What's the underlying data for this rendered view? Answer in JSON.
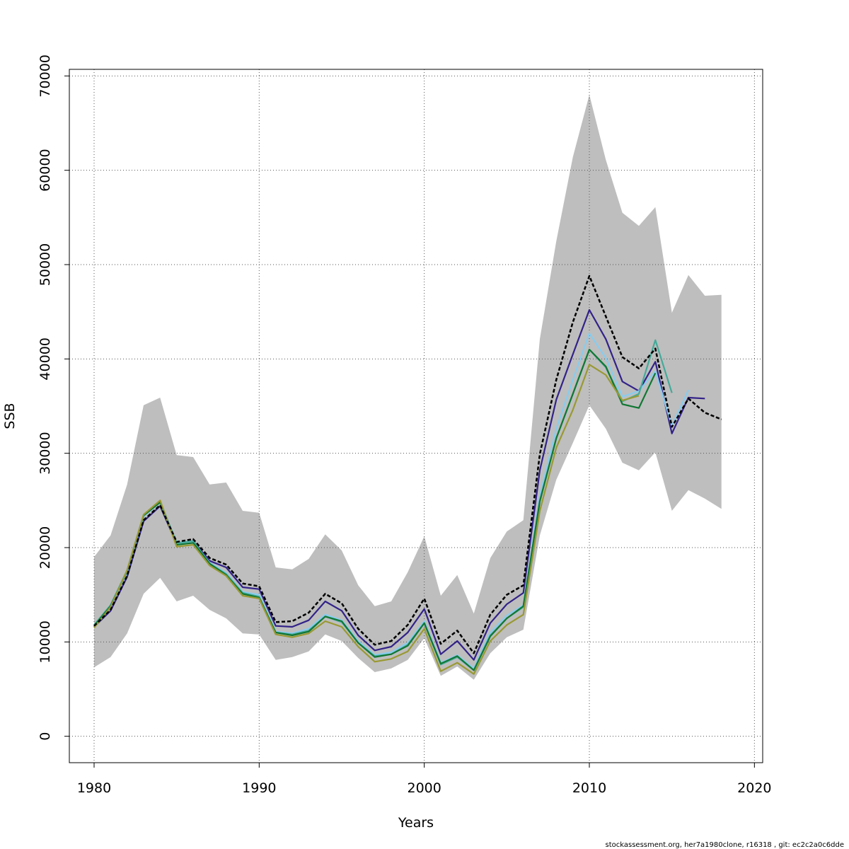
{
  "chart_data": {
    "type": "line",
    "title": "",
    "xlabel": "Years",
    "ylabel": "SSB",
    "xlim": [
      1978.5,
      2020.5
    ],
    "ylim": [
      -2800,
      70700
    ],
    "x_ticks": [
      1980,
      1990,
      2000,
      2010,
      2020
    ],
    "x_tick_labels": [
      "1980",
      "1990",
      "2000",
      "2010",
      "2020"
    ],
    "y_ticks": [
      0,
      10000,
      20000,
      30000,
      40000,
      50000,
      60000,
      70000
    ],
    "y_tick_labels": [
      "0",
      "10000",
      "20000",
      "30000",
      "40000",
      "50000",
      "60000",
      "70000"
    ],
    "grid": true,
    "band": {
      "x": [
        1980,
        1981,
        1982,
        1983,
        1984,
        1985,
        1986,
        1987,
        1988,
        1989,
        1990,
        1991,
        1992,
        1993,
        1994,
        1995,
        1996,
        1997,
        1998,
        1999,
        2000,
        2001,
        2002,
        2003,
        2004,
        2005,
        2006,
        2007,
        2008,
        2009,
        2010,
        2011,
        2012,
        2013,
        2014,
        2015,
        2016,
        2017,
        2018
      ],
      "upper": [
        19000,
        21300,
        26700,
        35100,
        35900,
        29800,
        29600,
        26700,
        26900,
        23900,
        23700,
        17900,
        17700,
        18800,
        21400,
        19700,
        16000,
        13800,
        14300,
        17400,
        21200,
        14900,
        17100,
        13000,
        18900,
        21700,
        22900,
        42100,
        52500,
        61400,
        68000,
        61100,
        55500,
        54100,
        56100,
        44900,
        48900,
        46700,
        46800
      ],
      "lower": [
        7300,
        8400,
        10900,
        15100,
        16800,
        14300,
        14900,
        13400,
        12500,
        10900,
        10800,
        8100,
        8400,
        9000,
        10800,
        10100,
        8300,
        6800,
        7200,
        8100,
        10400,
        6400,
        7400,
        6000,
        8800,
        10500,
        11300,
        21300,
        27200,
        31100,
        35100,
        32600,
        29000,
        28200,
        30100,
        23900,
        26100,
        25200,
        24100
      ],
      "color": "#bebebe"
    },
    "series": [
      {
        "color": "#000000",
        "dashed": true,
        "x": [
          1980,
          1981,
          1982,
          1983,
          1984,
          1985,
          1986,
          1987,
          1988,
          1989,
          1990,
          1991,
          1992,
          1993,
          1994,
          1995,
          1996,
          1997,
          1998,
          1999,
          2000,
          2001,
          2002,
          2003,
          2004,
          2005,
          2006,
          2007,
          2008,
          2009,
          2010,
          2011,
          2012,
          2013,
          2014,
          2015,
          2016,
          2017,
          2018
        ],
        "y": [
          11700,
          13400,
          17000,
          22900,
          24500,
          20600,
          20900,
          18900,
          18200,
          16200,
          15900,
          12100,
          12200,
          13100,
          15100,
          14100,
          11400,
          9700,
          10100,
          11800,
          14600,
          9800,
          11200,
          8800,
          12900,
          15000,
          16000,
          29900,
          37800,
          43900,
          48800,
          44500,
          40200,
          39000,
          41100,
          32800,
          35800,
          34300,
          33600
        ]
      },
      {
        "color": "#332288",
        "dashed": false,
        "x": [
          1980,
          1981,
          1982,
          1983,
          1984,
          1985,
          1986,
          1987,
          1988,
          1989,
          1990,
          1991,
          1992,
          1993,
          1994,
          1995,
          1996,
          1997,
          1998,
          1999,
          2000,
          2001,
          2002,
          2003,
          2004,
          2005,
          2006,
          2007,
          2008,
          2009,
          2010,
          2011,
          2012,
          2013,
          2014,
          2015,
          2016,
          2017
        ],
        "y": [
          11600,
          13300,
          16900,
          22800,
          24400,
          20400,
          20700,
          18600,
          17900,
          15800,
          15600,
          11700,
          11600,
          12300,
          14300,
          13300,
          10700,
          9100,
          9500,
          11000,
          13500,
          8700,
          10100,
          8100,
          12000,
          14000,
          15200,
          28200,
          35700,
          40500,
          45200,
          42100,
          37600,
          36600,
          39700,
          32100,
          35900,
          35800
        ]
      },
      {
        "color": "#88ccee",
        "dashed": false,
        "x": [
          1980,
          1981,
          1982,
          1983,
          1984,
          1985,
          1986,
          1987,
          1988,
          1989,
          1990,
          1991,
          1992,
          1993,
          1994,
          1995,
          1996,
          1997,
          1998,
          1999,
          2000,
          2001,
          2002,
          2003,
          2004,
          2005,
          2006,
          2007,
          2008,
          2009,
          2010,
          2011,
          2012,
          2013,
          2014,
          2015,
          2016
        ],
        "y": [
          11700,
          13700,
          17400,
          23300,
          24800,
          20400,
          20600,
          18400,
          17300,
          15300,
          15000,
          11100,
          10900,
          11400,
          12900,
          12300,
          10100,
          8600,
          8900,
          9900,
          12200,
          7800,
          8600,
          7200,
          11000,
          12800,
          13900,
          25500,
          32600,
          37800,
          42700,
          40100,
          36000,
          36600,
          38700,
          32900,
          36700
        ]
      },
      {
        "color": "#44aa99",
        "dashed": false,
        "x": [
          1980,
          1981,
          1982,
          1983,
          1984,
          1985,
          1986,
          1987,
          1988,
          1989,
          1990,
          1991,
          1992,
          1993,
          1994,
          1995,
          1996,
          1997,
          1998,
          1999,
          2000,
          2001,
          2002,
          2003,
          2004,
          2005,
          2006,
          2007,
          2008,
          2009,
          2010,
          2011,
          2012,
          2013,
          2014,
          2015
        ],
        "y": [
          11800,
          13900,
          17600,
          23500,
          24900,
          20500,
          20700,
          18300,
          17200,
          15200,
          14800,
          11000,
          10800,
          11200,
          12700,
          12100,
          9900,
          8500,
          8700,
          9700,
          12000,
          7600,
          8400,
          7000,
          10700,
          12500,
          13700,
          25000,
          31600,
          36300,
          41000,
          39100,
          35500,
          36300,
          42000,
          36400
        ]
      },
      {
        "color": "#117733",
        "dashed": false,
        "x": [
          1980,
          1981,
          1982,
          1983,
          1984,
          1985,
          1986,
          1987,
          1988,
          1989,
          1990,
          1991,
          1992,
          1993,
          1994,
          1995,
          1996,
          1997,
          1998,
          1999,
          2000,
          2001,
          2002,
          2003,
          2004,
          2005,
          2006,
          2007,
          2008,
          2009,
          2010,
          2011,
          2012,
          2013,
          2014
        ],
        "y": [
          11700,
          13800,
          17500,
          23400,
          24800,
          20300,
          20500,
          18300,
          17100,
          15100,
          14700,
          11000,
          10700,
          11100,
          12700,
          12200,
          9900,
          8400,
          8700,
          9600,
          12000,
          7700,
          8500,
          7000,
          10600,
          12500,
          13800,
          24900,
          31600,
          36300,
          41000,
          39200,
          35200,
          34800,
          38500
        ]
      },
      {
        "color": "#999933",
        "dashed": false,
        "x": [
          1980,
          1981,
          1982,
          1983,
          1984,
          1985,
          1986,
          1987,
          1988,
          1989,
          1990,
          1991,
          1992,
          1993,
          1994,
          1995,
          1996,
          1997,
          1998,
          1999,
          2000,
          2001,
          2002,
          2003,
          2004,
          2005,
          2006,
          2007,
          2008,
          2009,
          2010,
          2011,
          2012,
          2013
        ],
        "y": [
          11500,
          13700,
          17600,
          23500,
          25000,
          20100,
          20300,
          18100,
          17000,
          14900,
          14600,
          10800,
          10500,
          10900,
          12200,
          11600,
          9500,
          7900,
          8200,
          9000,
          11400,
          6900,
          7800,
          6600,
          10100,
          11800,
          12900,
          23900,
          30600,
          34600,
          39400,
          38300,
          35600,
          36100
        ]
      }
    ],
    "footer_note": "stockassessment.org, her7a1980clone, r16318 , git: ec2c2a0c6dde"
  }
}
